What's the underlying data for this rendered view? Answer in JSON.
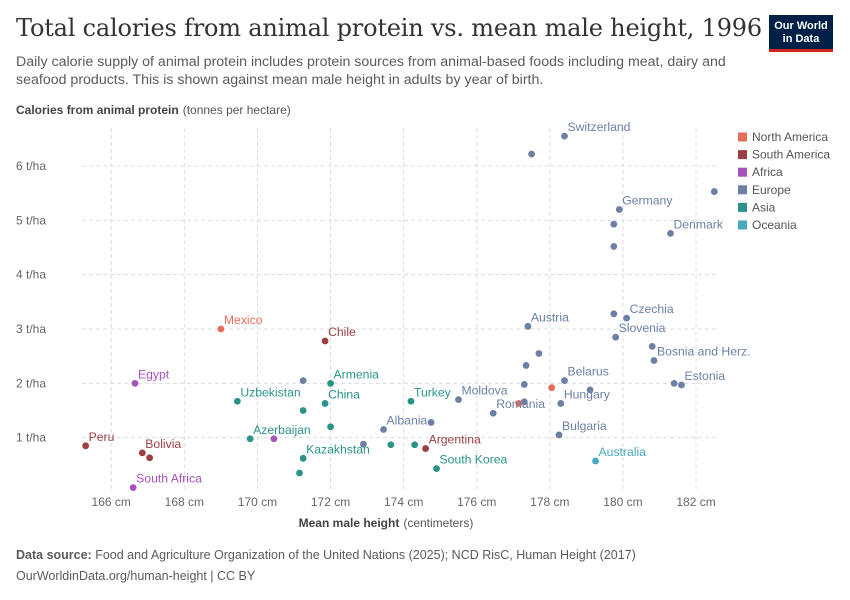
{
  "title": "Total calories from animal protein vs. mean male height, 1996",
  "subtitle": "Daily calorie supply of animal protein includes protein sources from animal-based foods including meat, dairy and seafood products. This is shown against mean male height in adults by year of birth.",
  "logo": {
    "line1": "Our World",
    "line2": "in Data"
  },
  "footer": {
    "source_label": "Data source:",
    "source_text": "Food and Agriculture Organization of the United Nations (2025); NCD RisC, Human Height (2017)",
    "url_line": "OurWorldinData.org/human-height | CC BY"
  },
  "colors": {
    "North America": "#e56e5a",
    "South America": "#9a3f44",
    "Africa": "#a652ba",
    "Europe": "#6d7fa5",
    "Asia": "#2a9488",
    "Oceania": "#46a8be"
  },
  "chart_data": {
    "type": "scatter",
    "title": "Total calories from animal protein vs. mean male height, 1996",
    "xlabel": "Mean male height",
    "xlabel_unit": "(centimeters)",
    "ylabel": "Calories from animal protein",
    "ylabel_unit": "(tonnes per hectare)",
    "xlim": [
      165.2,
      182.6
    ],
    "ylim": [
      0,
      6.7
    ],
    "x_ticks": [
      {
        "v": 166,
        "label": "166 cm"
      },
      {
        "v": 168,
        "label": "168 cm"
      },
      {
        "v": 170,
        "label": "170 cm"
      },
      {
        "v": 172,
        "label": "172 cm"
      },
      {
        "v": 174,
        "label": "174 cm"
      },
      {
        "v": 176,
        "label": "176 cm"
      },
      {
        "v": 178,
        "label": "178 cm"
      },
      {
        "v": 180,
        "label": "180 cm"
      },
      {
        "v": 182,
        "label": "182 cm"
      }
    ],
    "y_ticks": [
      {
        "v": 1,
        "label": "1 t/ha"
      },
      {
        "v": 2,
        "label": "2 t/ha"
      },
      {
        "v": 3,
        "label": "3 t/ha"
      },
      {
        "v": 4,
        "label": "4 t/ha"
      },
      {
        "v": 5,
        "label": "5 t/ha"
      },
      {
        "v": 6,
        "label": "6 t/ha"
      }
    ],
    "grid": true,
    "legend": {
      "position": "right",
      "entries": [
        "North America",
        "South America",
        "Africa",
        "Europe",
        "Asia",
        "Oceania"
      ]
    },
    "points": [
      {
        "x": 178.4,
        "y": 6.55,
        "region": "Europe",
        "label": "Switzerland"
      },
      {
        "x": 177.5,
        "y": 6.22,
        "region": "Europe"
      },
      {
        "x": 182.5,
        "y": 5.53,
        "region": "Europe"
      },
      {
        "x": 179.9,
        "y": 5.2,
        "region": "Europe",
        "label": "Germany"
      },
      {
        "x": 179.75,
        "y": 4.93,
        "region": "Europe"
      },
      {
        "x": 181.3,
        "y": 4.76,
        "region": "Europe",
        "label": "Denmark"
      },
      {
        "x": 179.75,
        "y": 4.52,
        "region": "Europe"
      },
      {
        "x": 179.75,
        "y": 3.28,
        "region": "Europe"
      },
      {
        "x": 180.1,
        "y": 3.2,
        "region": "Europe",
        "label": "Czechia"
      },
      {
        "x": 177.4,
        "y": 3.05,
        "region": "Europe",
        "label": "Austria"
      },
      {
        "x": 179.8,
        "y": 2.85,
        "region": "Europe",
        "label": "Slovenia"
      },
      {
        "x": 180.8,
        "y": 2.68,
        "region": "Europe"
      },
      {
        "x": 177.7,
        "y": 2.55,
        "region": "Europe"
      },
      {
        "x": 180.85,
        "y": 2.42,
        "region": "Europe",
        "label": "Bosnia and Herz."
      },
      {
        "x": 177.35,
        "y": 2.33,
        "region": "Europe"
      },
      {
        "x": 178.4,
        "y": 2.05,
        "region": "Europe",
        "label": "Belarus"
      },
      {
        "x": 181.4,
        "y": 2.0,
        "region": "Europe"
      },
      {
        "x": 181.6,
        "y": 1.97,
        "region": "Europe",
        "label": "Estonia"
      },
      {
        "x": 177.3,
        "y": 1.98,
        "region": "Europe"
      },
      {
        "x": 179.1,
        "y": 1.88,
        "region": "Europe"
      },
      {
        "x": 175.5,
        "y": 1.7,
        "region": "Europe",
        "label": "Moldova"
      },
      {
        "x": 178.3,
        "y": 1.63,
        "region": "Europe",
        "label": "Hungary"
      },
      {
        "x": 177.3,
        "y": 1.66,
        "region": "Europe"
      },
      {
        "x": 176.45,
        "y": 1.45,
        "region": "Europe",
        "label": "Romania"
      },
      {
        "x": 174.75,
        "y": 1.28,
        "region": "Europe"
      },
      {
        "x": 173.45,
        "y": 1.15,
        "region": "Europe",
        "label": "Albania"
      },
      {
        "x": 178.25,
        "y": 1.05,
        "region": "Europe",
        "label": "Bulgaria"
      },
      {
        "x": 172.9,
        "y": 0.88,
        "region": "Europe"
      },
      {
        "x": 171.25,
        "y": 2.05,
        "region": "Europe"
      },
      {
        "x": 178.05,
        "y": 1.92,
        "region": "North America"
      },
      {
        "x": 177.15,
        "y": 1.63,
        "region": "North America"
      },
      {
        "x": 169.0,
        "y": 3.0,
        "region": "North America",
        "label": "Mexico"
      },
      {
        "x": 171.85,
        "y": 2.78,
        "region": "South America",
        "label": "Chile"
      },
      {
        "x": 174.6,
        "y": 0.8,
        "region": "South America",
        "label": "Argentina"
      },
      {
        "x": 166.85,
        "y": 0.72,
        "region": "South America",
        "label": "Bolivia"
      },
      {
        "x": 167.05,
        "y": 0.63,
        "region": "South America"
      },
      {
        "x": 165.3,
        "y": 0.85,
        "region": "South America",
        "label": "Peru"
      },
      {
        "x": 166.65,
        "y": 2.0,
        "region": "Africa",
        "label": "Egypt"
      },
      {
        "x": 170.45,
        "y": 0.98,
        "region": "Africa"
      },
      {
        "x": 166.6,
        "y": 0.08,
        "region": "Africa",
        "label": "South Africa"
      },
      {
        "x": 172.0,
        "y": 2.0,
        "region": "Asia",
        "label": "Armenia"
      },
      {
        "x": 169.45,
        "y": 1.67,
        "region": "Asia",
        "label": "Uzbekistan"
      },
      {
        "x": 171.85,
        "y": 1.63,
        "region": "Asia",
        "label": "China"
      },
      {
        "x": 174.2,
        "y": 1.67,
        "region": "Asia",
        "label": "Turkey"
      },
      {
        "x": 171.25,
        "y": 1.5,
        "region": "Asia"
      },
      {
        "x": 172.0,
        "y": 1.2,
        "region": "Asia"
      },
      {
        "x": 169.8,
        "y": 0.98,
        "region": "Asia",
        "label": "Azerbaijan"
      },
      {
        "x": 173.65,
        "y": 0.87,
        "region": "Asia"
      },
      {
        "x": 174.3,
        "y": 0.87,
        "region": "Asia"
      },
      {
        "x": 171.25,
        "y": 0.62,
        "region": "Asia",
        "label": "Kazakhstan"
      },
      {
        "x": 171.15,
        "y": 0.35,
        "region": "Asia"
      },
      {
        "x": 174.9,
        "y": 0.43,
        "region": "Asia",
        "label": "South Korea"
      },
      {
        "x": 179.25,
        "y": 0.57,
        "region": "Oceania",
        "label": "Australia"
      }
    ]
  }
}
